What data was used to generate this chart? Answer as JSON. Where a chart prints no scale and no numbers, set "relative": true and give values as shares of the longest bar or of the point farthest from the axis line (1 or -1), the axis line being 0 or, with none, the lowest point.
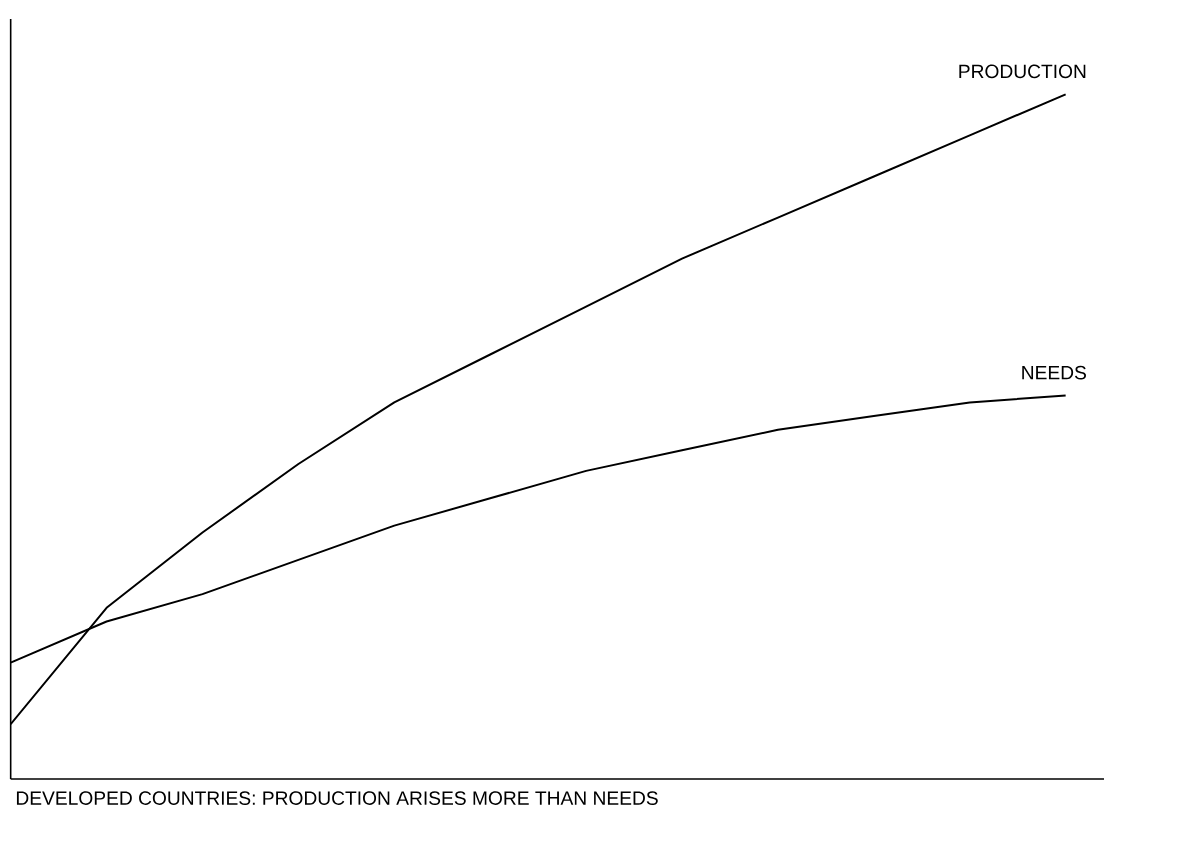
{
  "chart_data": {
    "type": "line",
    "relative": true,
    "xlabel": "DEVELOPED COUNTRIES: PRODUCTION ARISES MORE THAN NEEDS",
    "categories": [
      null,
      null,
      null,
      null,
      null,
      null,
      null,
      null,
      null,
      null,
      null,
      null
    ],
    "legend": false,
    "series": [
      {
        "name": "PRODUCTION",
        "color": "#000000",
        "values": [
          0.08,
          0.25,
          0.36,
          0.46,
          0.55,
          0.62,
          0.69,
          0.76,
          0.82,
          0.88,
          0.94,
          1
        ]
      },
      {
        "name": "NEEDS",
        "color": "#000000",
        "values": [
          0.17,
          0.23,
          0.27,
          0.32,
          0.37,
          0.41,
          0.45,
          0.48,
          0.51,
          0.53,
          0.55,
          0.56
        ]
      }
    ]
  }
}
